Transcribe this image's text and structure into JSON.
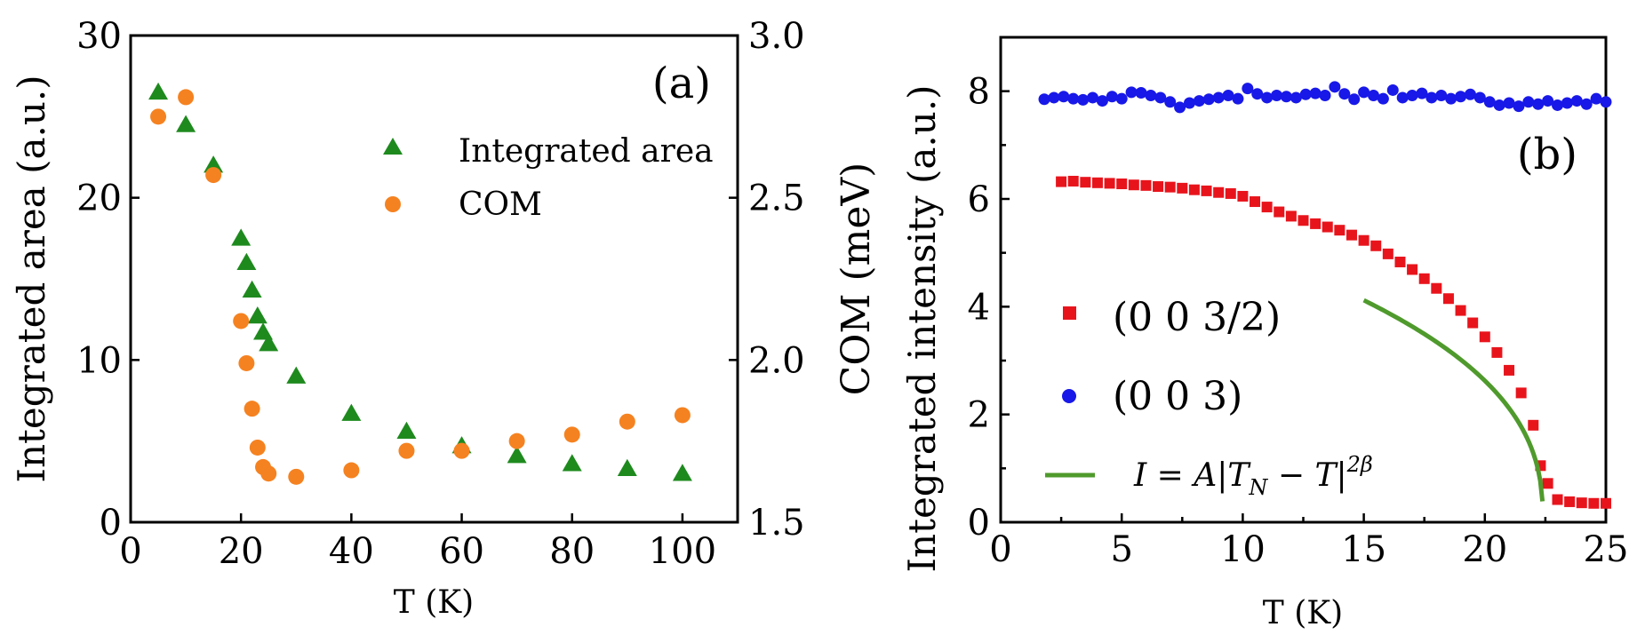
{
  "chart_data": [
    {
      "panel": "(a)",
      "type": "scatter",
      "xlabel": "T (K)",
      "ylabel": "Integrated area (a.u.)",
      "ylabel_right": "COM (meV)",
      "xlim": [
        0,
        110
      ],
      "ylim": [
        0,
        30
      ],
      "ylim_right": [
        1.5,
        3.0
      ],
      "xticks": [
        0,
        20,
        40,
        60,
        80,
        100
      ],
      "yticks": [
        0,
        10,
        20,
        30
      ],
      "yticks_right": [
        "1.5",
        "2.0",
        "2.5",
        "3.0"
      ],
      "legend_position": "upper-right",
      "series": [
        {
          "name": "Integrated area",
          "marker": "triangle",
          "color": "#1e8a1e",
          "axis": "left",
          "x": [
            5,
            10,
            15,
            20,
            21,
            22,
            23,
            24,
            25,
            30,
            40,
            50,
            60,
            70,
            80,
            90,
            100
          ],
          "y": [
            26.5,
            24.5,
            22.0,
            17.5,
            16.0,
            14.3,
            12.7,
            11.7,
            11.0,
            9.0,
            6.7,
            5.6,
            4.7,
            4.1,
            3.6,
            3.3,
            3.0
          ]
        },
        {
          "name": "COM",
          "marker": "circle",
          "color": "#f58220",
          "axis": "right",
          "x": [
            5,
            10,
            15,
            20,
            21,
            22,
            23,
            24,
            25,
            30,
            40,
            50,
            60,
            70,
            80,
            90,
            100
          ],
          "y": [
            2.75,
            2.81,
            2.57,
            2.12,
            1.99,
            1.85,
            1.73,
            1.67,
            1.65,
            1.64,
            1.66,
            1.72,
            1.72,
            1.75,
            1.77,
            1.81,
            1.83
          ]
        }
      ]
    },
    {
      "panel": "(b)",
      "type": "scatter",
      "xlabel": "T (K)",
      "ylabel": "Integrated intensity (a.u.)",
      "xlim": [
        0,
        25
      ],
      "ylim": [
        0,
        9
      ],
      "xticks": [
        0,
        5,
        10,
        15,
        20,
        25
      ],
      "yticks": [
        0,
        2,
        4,
        6,
        8
      ],
      "legend_position": "lower-left",
      "series": [
        {
          "name": "(0 0 3/2)",
          "marker": "square",
          "color": "#e8141c",
          "x": [
            2.5,
            3.0,
            3.5,
            4.0,
            4.5,
            5.0,
            5.5,
            6.0,
            6.5,
            7.0,
            7.5,
            8.0,
            8.5,
            9.0,
            9.5,
            10.0,
            10.5,
            11.0,
            11.5,
            12.0,
            12.5,
            13.0,
            13.5,
            14.0,
            14.5,
            15.0,
            15.5,
            16.0,
            16.5,
            17.0,
            17.5,
            18.0,
            18.5,
            19.0,
            19.5,
            20.0,
            20.5,
            21.0,
            21.5,
            22.0,
            22.3,
            22.6,
            23.0,
            23.5,
            24.0,
            24.5,
            25.0
          ],
          "y": [
            6.32,
            6.33,
            6.31,
            6.3,
            6.29,
            6.28,
            6.26,
            6.25,
            6.23,
            6.22,
            6.2,
            6.17,
            6.15,
            6.12,
            6.1,
            6.05,
            5.95,
            5.85,
            5.76,
            5.68,
            5.6,
            5.54,
            5.48,
            5.42,
            5.33,
            5.23,
            5.13,
            4.98,
            4.83,
            4.69,
            4.52,
            4.34,
            4.15,
            3.93,
            3.7,
            3.44,
            3.15,
            2.82,
            2.4,
            1.8,
            1.05,
            0.72,
            0.42,
            0.38,
            0.36,
            0.35,
            0.35
          ]
        },
        {
          "name": "(0 0 3)",
          "marker": "circle",
          "color": "#1818e8",
          "x": [
            1.8,
            2.2,
            2.6,
            3.0,
            3.4,
            3.8,
            4.2,
            4.6,
            5.0,
            5.4,
            5.8,
            6.2,
            6.6,
            7.0,
            7.4,
            7.8,
            8.2,
            8.6,
            9.0,
            9.4,
            9.8,
            10.2,
            10.6,
            11.0,
            11.4,
            11.8,
            12.2,
            12.6,
            13.0,
            13.4,
            13.8,
            14.2,
            14.6,
            15.0,
            15.4,
            15.8,
            16.2,
            16.6,
            17.0,
            17.4,
            17.8,
            18.2,
            18.6,
            19.0,
            19.4,
            19.8,
            20.2,
            20.6,
            21.0,
            21.4,
            21.8,
            22.2,
            22.6,
            23.0,
            23.4,
            23.8,
            24.2,
            24.6,
            25.0
          ],
          "y": [
            7.85,
            7.88,
            7.9,
            7.86,
            7.84,
            7.88,
            7.82,
            7.9,
            7.86,
            7.98,
            7.97,
            7.92,
            7.88,
            7.8,
            7.7,
            7.78,
            7.82,
            7.85,
            7.88,
            7.92,
            7.86,
            8.05,
            7.95,
            7.88,
            7.92,
            7.9,
            7.88,
            7.94,
            7.96,
            7.92,
            8.08,
            7.95,
            7.85,
            7.98,
            7.92,
            7.86,
            8.02,
            7.88,
            7.92,
            7.96,
            7.88,
            7.92,
            7.86,
            7.9,
            7.94,
            7.88,
            7.8,
            7.74,
            7.78,
            7.72,
            7.8,
            7.76,
            7.82,
            7.74,
            7.78,
            7.82,
            7.76,
            7.86,
            7.8
          ]
        },
        {
          "name": "I = A|T_N − T|^{2β}",
          "type": "line",
          "color": "#4f9a2c",
          "fit": {
            "A": 1.85,
            "T_N": 22.4,
            "beta": 0.2,
            "x_start": 15.0,
            "x_end": 22.38
          }
        }
      ]
    }
  ],
  "legend_a": {
    "integrated_area": "Integrated area",
    "com": "COM"
  },
  "legend_b": {
    "peak_half": "(0 0 3/2)",
    "peak_full": "(0 0 3)"
  },
  "fit_label": {
    "text_lhs": "I = A|T",
    "subscript": "N",
    "text_rhs": " − T|",
    "superscript": "2β"
  },
  "colors": {
    "green_triangle": "#1e8a1e",
    "orange_circle": "#f58220",
    "red_square": "#e8141c",
    "blue_circle": "#1818e8",
    "fit_line": "#4f9a2c"
  }
}
